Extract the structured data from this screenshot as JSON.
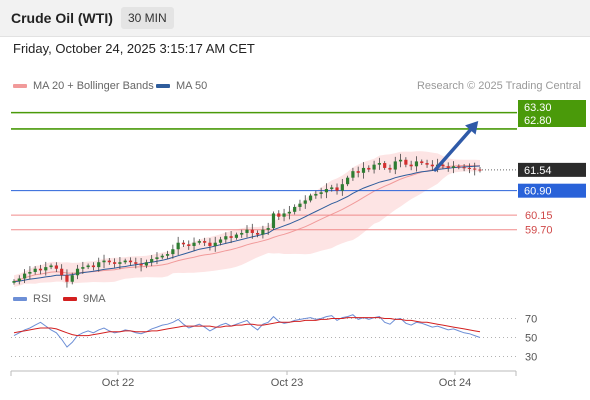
{
  "header": {
    "title": "Crude Oil (WTI)",
    "timeframe": "30 MIN"
  },
  "datetime": "Friday, October 24, 2025 3:15:17 AM CET",
  "credit": "Research © 2025 Trading Central",
  "legend": [
    {
      "label": "MA 20 + Bollinger Bands",
      "color": "#f19a9a"
    },
    {
      "label": "MA 50",
      "color": "#2f5d9c"
    }
  ],
  "rsi_legend": [
    {
      "label": "RSI",
      "color": "#6d8fd6"
    },
    {
      "label": "9MA",
      "color": "#d32020"
    }
  ],
  "chart_data": [
    {
      "type": "line",
      "description_kind": "candlestick",
      "ylim": [
        58.0,
        63.75
      ],
      "x_ticks": [
        "Oct 22",
        "Oct 23",
        "Oct 24"
      ],
      "levels": [
        {
          "value": 63.3,
          "label": "63.30",
          "color": "#4a9a0a",
          "style": "line",
          "tag": true
        },
        {
          "value": 62.8,
          "label": "62.80",
          "color": "#4a9a0a",
          "style": "line",
          "tag": true
        },
        {
          "value": 61.54,
          "label": "61.54",
          "color": "#2b2b2b",
          "style": "dotted",
          "tag": true
        },
        {
          "value": 60.9,
          "label": "60.90",
          "color": "#2962d9",
          "style": "line",
          "tag": true
        },
        {
          "value": 60.15,
          "label": "60.15",
          "color": "#f08a8a",
          "style": "line",
          "tag": false
        },
        {
          "value": 59.7,
          "label": "59.70",
          "color": "#f08a8a",
          "style": "line",
          "tag": false
        }
      ],
      "projection": {
        "from": [
          0.84,
          61.54
        ],
        "to": [
          0.92,
          62.95
        ],
        "color": "#2f5aa8"
      },
      "candles_close": [
        58.12,
        58.2,
        58.35,
        58.4,
        58.5,
        58.45,
        58.55,
        58.6,
        58.5,
        58.3,
        58.1,
        58.3,
        58.5,
        58.55,
        58.6,
        58.55,
        58.7,
        58.75,
        58.7,
        58.65,
        58.7,
        58.75,
        58.7,
        58.65,
        58.6,
        58.7,
        58.8,
        58.85,
        58.9,
        58.95,
        59.1,
        59.3,
        59.25,
        59.2,
        59.3,
        59.35,
        59.3,
        59.2,
        59.3,
        59.4,
        59.5,
        59.45,
        59.55,
        59.6,
        59.7,
        59.6,
        59.55,
        59.7,
        59.75,
        60.2,
        60.1,
        60.2,
        60.25,
        60.4,
        60.5,
        60.6,
        60.75,
        60.8,
        60.85,
        60.95,
        61.0,
        60.9,
        61.1,
        61.3,
        61.5,
        61.45,
        61.6,
        61.55,
        61.7,
        61.75,
        61.6,
        61.55,
        61.8,
        61.85,
        61.7,
        61.65,
        61.8,
        61.75,
        61.7,
        61.65,
        61.7,
        61.65,
        61.6,
        61.65,
        61.62,
        61.6,
        61.58,
        61.55,
        61.54
      ],
      "ma50": [
        58.1,
        58.12,
        58.15,
        58.18,
        58.2,
        58.22,
        58.25,
        58.27,
        58.3,
        58.3,
        58.3,
        58.32,
        58.35,
        58.38,
        58.4,
        58.42,
        58.45,
        58.48,
        58.5,
        58.52,
        58.55,
        58.57,
        58.6,
        58.62,
        58.65,
        58.68,
        58.7,
        58.73,
        58.76,
        58.8,
        58.85,
        58.9,
        58.95,
        59.0,
        59.05,
        59.1,
        59.13,
        59.16,
        59.2,
        59.24,
        59.28,
        59.32,
        59.36,
        59.4,
        59.44,
        59.48,
        59.52,
        59.56,
        59.6,
        59.7,
        59.76,
        59.82,
        59.88,
        59.95,
        60.02,
        60.1,
        60.18,
        60.26,
        60.34,
        60.42,
        60.5,
        60.56,
        60.64,
        60.72,
        60.82,
        60.9,
        60.98,
        61.04,
        61.1,
        61.16,
        61.2,
        61.24,
        61.3,
        61.34,
        61.38,
        61.41,
        61.45,
        61.48,
        61.5,
        61.52,
        61.55,
        61.57,
        61.59,
        61.61,
        61.62,
        61.63,
        61.64,
        61.65,
        61.66
      ]
    },
    {
      "type": "line",
      "title": "RSI",
      "ylim": [
        20,
        80
      ],
      "y_ticks": [
        70,
        50,
        30
      ],
      "series": [
        {
          "name": "RSI",
          "values": [
            52,
            55,
            58,
            60,
            63,
            66,
            62,
            58,
            55,
            48,
            40,
            45,
            52,
            55,
            57,
            55,
            58,
            60,
            57,
            55,
            56,
            58,
            57,
            55,
            54,
            56,
            59,
            61,
            63,
            64,
            66,
            69,
            64,
            60,
            62,
            64,
            61,
            57,
            60,
            63,
            65,
            62,
            64,
            66,
            68,
            62,
            58,
            64,
            66,
            72,
            67,
            65,
            66,
            68,
            69,
            70,
            71,
            69,
            70,
            72,
            73,
            68,
            71,
            72,
            74,
            69,
            71,
            69,
            71,
            72,
            66,
            64,
            69,
            70,
            65,
            63,
            66,
            65,
            63,
            61,
            62,
            60,
            58,
            59,
            57,
            55,
            54,
            52,
            50
          ]
        },
        {
          "name": "9MA",
          "values": [
            55,
            56,
            57,
            58,
            59,
            60,
            60,
            60,
            59,
            57,
            55,
            53,
            52,
            52,
            52,
            53,
            54,
            55,
            56,
            56,
            56,
            57,
            57,
            56,
            56,
            56,
            57,
            57,
            58,
            59,
            60,
            61,
            62,
            62,
            62,
            62,
            62,
            62,
            61,
            61,
            62,
            62,
            63,
            63,
            64,
            64,
            63,
            63,
            64,
            65,
            66,
            66,
            66,
            67,
            67,
            68,
            68,
            68,
            69,
            69,
            70,
            70,
            70,
            71,
            71,
            71,
            71,
            71,
            71,
            71,
            70,
            70,
            69,
            69,
            68,
            68,
            67,
            66,
            66,
            65,
            64,
            63,
            62,
            61,
            60,
            59,
            58,
            57,
            56
          ]
        }
      ]
    }
  ]
}
